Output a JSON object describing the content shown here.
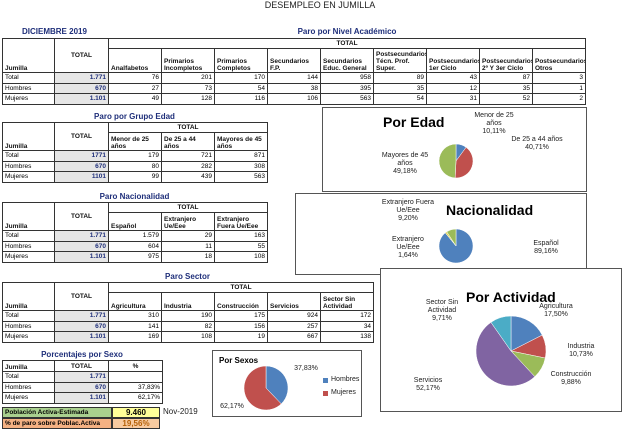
{
  "title": "DESEMPLEO EN JUMILLA",
  "date": "DICIEMBRE 2019",
  "tables": [
    {
      "title": "Paro por Nivel Académico",
      "group_header": "TOTAL",
      "columns": [
        "Jumilla",
        "TOTAL",
        "Analfabetos",
        "Primarios Incompletos",
        "Primarios Completos",
        "Secundarios F.P.",
        "Secundarios Educ. General",
        "Postsecundarios Técn. Prof. Super.",
        "Postsecundarios 1er Ciclo",
        "Postsecundarios 2º Y 3er Ciclo",
        "Postsecundarios Otros"
      ],
      "rows": [
        [
          "Total",
          "1.771",
          "76",
          "201",
          "170",
          "144",
          "958",
          "89",
          "43",
          "87",
          "3"
        ],
        [
          "Hombres",
          "670",
          "27",
          "73",
          "54",
          "38",
          "395",
          "35",
          "12",
          "35",
          "1"
        ],
        [
          "Mujeres",
          "1.101",
          "49",
          "128",
          "116",
          "106",
          "563",
          "54",
          "31",
          "52",
          "2"
        ]
      ]
    },
    {
      "title": "Paro por Grupo Edad",
      "group_header": "TOTAL",
      "columns": [
        "Jumilla",
        "TOTAL",
        "Menor de 25 años",
        "De 25 a 44 años",
        "Mayores de 45 años"
      ],
      "rows": [
        [
          "Total",
          "1771",
          "179",
          "721",
          "871"
        ],
        [
          "Hombres",
          "670",
          "80",
          "282",
          "308"
        ],
        [
          "Mujeres",
          "1101",
          "99",
          "439",
          "563"
        ]
      ]
    },
    {
      "title": "Paro Nacionalidad",
      "group_header": "TOTAL",
      "columns": [
        "Jumilla",
        "TOTAL",
        "Español",
        "Extranjero Ue/Eee",
        "Extranjero Fuera Ue/Eee"
      ],
      "rows": [
        [
          "Total",
          "1.771",
          "1.579",
          "29",
          "163"
        ],
        [
          "Hombres",
          "670",
          "604",
          "11",
          "55"
        ],
        [
          "Mujeres",
          "1.101",
          "975",
          "18",
          "108"
        ]
      ]
    },
    {
      "title": "Paro Sector",
      "group_header": "TOTAL",
      "columns": [
        "Jumilla",
        "TOTAL",
        "Agricultura",
        "Industria",
        "Construcción",
        "Servicios",
        "Sector Sin Actividad"
      ],
      "rows": [
        [
          "Total",
          "1.771",
          "310",
          "190",
          "175",
          "924",
          "172"
        ],
        [
          "Hombres",
          "670",
          "141",
          "82",
          "156",
          "257",
          "34"
        ],
        [
          "Mujeres",
          "1.101",
          "169",
          "108",
          "19",
          "667",
          "138"
        ]
      ]
    },
    {
      "title": "Porcentajes por Sexo",
      "columns": [
        "Jumilla",
        "TOTAL",
        "%"
      ],
      "rows": [
        [
          "Total",
          "1.771"
        ],
        [
          "Hombres",
          "670",
          "37,83%"
        ],
        [
          "Mujeres",
          "1.101",
          "62,17%"
        ]
      ]
    }
  ],
  "summary": [
    {
      "label": "Población Activa-Estimada",
      "value": "9.460",
      "note": "Nov-2019"
    },
    {
      "label": "% de paro sobre Poblac.Activa",
      "value": "19,56%"
    }
  ],
  "chart_data": [
    {
      "type": "pie",
      "title": "Por Edad",
      "categories": [
        "Menor de 25 años",
        "De 25 a 44 años",
        "Mayores de 45 años"
      ],
      "values": [
        10.11,
        40.71,
        49.18
      ],
      "value_labels": [
        "10,11%",
        "40,71%",
        "49,18%"
      ],
      "colors": [
        "#4f81bd",
        "#c0504d",
        "#9bbb59"
      ]
    },
    {
      "type": "pie",
      "title": "Nacionalidad",
      "categories": [
        "Español",
        "Extranjero Ue/Eee",
        "Extranjero Fuera Ue/Eee"
      ],
      "values": [
        89.16,
        1.64,
        9.2
      ],
      "value_labels": [
        "89,16%",
        "1,64%",
        "9,20%"
      ],
      "colors": [
        "#4f81bd",
        "#e3d24a",
        "#9bbb59"
      ]
    },
    {
      "type": "pie",
      "title": "Por Actividad",
      "categories": [
        "Agricultura",
        "Industria",
        "Construcción",
        "Servicios",
        "Sector Sin Actividad"
      ],
      "values": [
        17.5,
        10.73,
        9.88,
        52.17,
        9.71
      ],
      "value_labels": [
        "17,50%",
        "10,73%",
        "9,88%",
        "52,17%",
        "9,71%"
      ],
      "colors": [
        "#4f81bd",
        "#c0504d",
        "#9bbb59",
        "#8064a2",
        "#4bacc6"
      ]
    },
    {
      "type": "pie",
      "title": "Por Sexos",
      "legend": true,
      "categories": [
        "Hombres",
        "Mujeres"
      ],
      "values": [
        37.83,
        62.17
      ],
      "value_labels": [
        "37,83%",
        "62,17%"
      ],
      "colors": [
        "#4f81bd",
        "#c0504d"
      ]
    }
  ]
}
